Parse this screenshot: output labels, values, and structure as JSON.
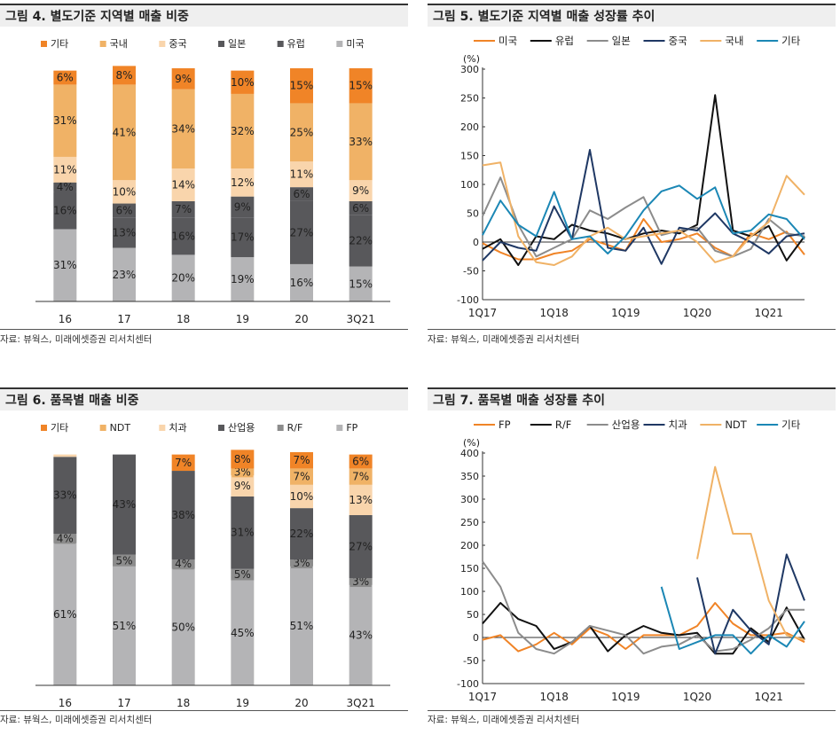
{
  "panels": [
    {
      "id": "fig4",
      "title": "그림 4. 별도기준 지역별 매출 비중",
      "source": "자료: 뷰웍스, 미래에셋증권 리서치센터",
      "chart_data": {
        "type": "bar",
        "stacked": true,
        "categories": [
          "16",
          "17",
          "18",
          "19",
          "20",
          "3Q21"
        ],
        "legend_position": "top",
        "series": [
          {
            "name": "미국",
            "color": "#b4b4b6",
            "values": [
              31,
              23,
              20,
              19,
              16,
              15
            ],
            "labels": [
              "31%",
              "23%",
              "20%",
              "19%",
              "16%",
              "15%"
            ]
          },
          {
            "name": "유럽",
            "color": "#58585b",
            "values": [
              16,
              13,
              16,
              17,
              27,
              22
            ],
            "labels": [
              "16%",
              "13%",
              "16%",
              "17%",
              "27%",
              "22%"
            ]
          },
          {
            "name": "일본",
            "color": "#58585b",
            "values": [
              4,
              6,
              7,
              9,
              6,
              6
            ],
            "labels": [
              "4%",
              "6%",
              "7%",
              "9%",
              "6%",
              "6%"
            ]
          },
          {
            "name": "중국",
            "color": "#f9d5ac",
            "values": [
              11,
              10,
              14,
              12,
              11,
              9
            ],
            "labels": [
              "11%",
              "10%",
              "14%",
              "12%",
              "11%",
              "9%"
            ]
          },
          {
            "name": "국내",
            "color": "#f0b266",
            "values": [
              31,
              41,
              34,
              32,
              25,
              33
            ],
            "labels": [
              "31%",
              "41%",
              "34%",
              "32%",
              "25%",
              "33%"
            ]
          },
          {
            "name": "기타",
            "color": "#f08427",
            "values": [
              6,
              8,
              9,
              10,
              15,
              15
            ],
            "labels": [
              "6%",
              "8%",
              "9%",
              "10%",
              "15%",
              "15%"
            ]
          }
        ]
      }
    },
    {
      "id": "fig5",
      "title": "그림 5. 별도기준 지역별 매출 성장률 추이",
      "source": "자료: 뷰웍스, 미래에셋증권 리서치센터",
      "chart_data": {
        "type": "line",
        "unit": "(%)",
        "ylim": [
          -100,
          300
        ],
        "yticks": [
          -100,
          -50,
          0,
          50,
          100,
          150,
          200,
          250,
          300
        ],
        "x": [
          "1Q17",
          "2Q17",
          "3Q17",
          "4Q17",
          "1Q18",
          "2Q18",
          "3Q18",
          "4Q18",
          "1Q19",
          "2Q19",
          "3Q19",
          "4Q19",
          "1Q20",
          "2Q20",
          "3Q20",
          "4Q20",
          "1Q21",
          "2Q21",
          "3Q21"
        ],
        "xticklabels": [
          "1Q17",
          "1Q18",
          "1Q19",
          "1Q20",
          "1Q21"
        ],
        "legend_position": "top",
        "series": [
          {
            "name": "미국",
            "color": "#f08427",
            "values": [
              -2,
              -18,
              -30,
              -30,
              -20,
              -15,
              5,
              -5,
              -15,
              40,
              0,
              5,
              15,
              -10,
              -25,
              15,
              5,
              18,
              -22
            ]
          },
          {
            "name": "유럽",
            "color": "#111111",
            "values": [
              -12,
              5,
              -40,
              10,
              5,
              30,
              20,
              15,
              5,
              15,
              20,
              15,
              30,
              255,
              20,
              10,
              28,
              -32,
              10
            ]
          },
          {
            "name": "일본",
            "color": "#8c8c8c",
            "values": [
              45,
              112,
              30,
              -25,
              -10,
              5,
              55,
              40,
              60,
              78,
              12,
              20,
              25,
              -15,
              -25,
              -12,
              40,
              15,
              10
            ]
          },
          {
            "name": "중국",
            "color": "#1f3864",
            "values": [
              -32,
              0,
              -10,
              -15,
              62,
              5,
              160,
              -10,
              -15,
              25,
              -38,
              25,
              20,
              50,
              15,
              0,
              -20,
              10,
              15
            ]
          },
          {
            "name": "국내",
            "color": "#f0b266",
            "values": [
              133,
              138,
              10,
              -35,
              -40,
              -25,
              10,
              25,
              5,
              10,
              15,
              20,
              0,
              -35,
              -25,
              10,
              35,
              115,
              82
            ]
          },
          {
            "name": "기타",
            "color": "#1b87b5",
            "values": [
              12,
              72,
              30,
              10,
              87,
              5,
              10,
              -20,
              10,
              55,
              88,
              98,
              75,
              95,
              15,
              20,
              48,
              40,
              5
            ]
          }
        ]
      }
    },
    {
      "id": "fig6",
      "title": "그림 6. 품목별 매출 비중",
      "source": "자료: 뷰웍스, 미래에셋증권 리서치센터",
      "chart_data": {
        "type": "bar",
        "stacked": true,
        "categories": [
          "16",
          "17",
          "18",
          "19",
          "20",
          "3Q21"
        ],
        "legend_position": "top",
        "series": [
          {
            "name": "FP",
            "color": "#b4b4b6",
            "values": [
              61,
              51,
              50,
              45,
              51,
              43
            ],
            "labels": [
              "61%",
              "51%",
              "50%",
              "45%",
              "51%",
              "43%"
            ]
          },
          {
            "name": "R/F",
            "color": "#8c8c8c",
            "values": [
              4,
              5,
              4,
              5,
              3,
              3
            ],
            "labels": [
              "4%",
              "5%",
              "4%",
              "5%",
              "3%",
              "3%"
            ]
          },
          {
            "name": "산업용",
            "color": "#58585b",
            "values": [
              33,
              43,
              38,
              31,
              22,
              27
            ],
            "labels": [
              "33%",
              "43%",
              "38%",
              "31%",
              "22%",
              "27%"
            ]
          },
          {
            "name": "치과",
            "color": "#f9d5ac",
            "values": [
              1,
              0,
              0,
              9,
              10,
              13
            ],
            "labels": [
              "",
              "",
              "",
              "9%",
              "10%",
              "13%"
            ]
          },
          {
            "name": "NDT",
            "color": "#f0b266",
            "values": [
              0,
              0,
              0,
              3,
              7,
              7
            ],
            "labels": [
              "",
              "",
              "",
              "3%",
              "7%",
              "7%"
            ]
          },
          {
            "name": "기타",
            "color": "#f08427",
            "values": [
              0,
              0,
              7,
              8,
              7,
              6
            ],
            "labels": [
              "",
              "",
              "7%",
              "8%",
              "7%",
              "6%"
            ]
          }
        ]
      }
    },
    {
      "id": "fig7",
      "title": "그림 7. 품목별 매출 성장률 추이",
      "source": "자료: 뷰웍스, 미래에셋증권 리서치센터",
      "chart_data": {
        "type": "line",
        "unit": "(%)",
        "ylim": [
          -100,
          400
        ],
        "yticks": [
          -100,
          -50,
          0,
          50,
          100,
          150,
          200,
          250,
          300,
          350,
          400
        ],
        "x": [
          "1Q17",
          "2Q17",
          "3Q17",
          "4Q17",
          "1Q18",
          "2Q18",
          "3Q18",
          "4Q18",
          "1Q19",
          "2Q19",
          "3Q19",
          "4Q19",
          "1Q20",
          "2Q20",
          "3Q20",
          "4Q20",
          "1Q21",
          "2Q21",
          "3Q21"
        ],
        "xticklabels": [
          "1Q17",
          "1Q18",
          "1Q19",
          "1Q20",
          "1Q21"
        ],
        "legend_position": "top",
        "series": [
          {
            "name": "FP",
            "color": "#f08427",
            "values": [
              -5,
              5,
              -30,
              -15,
              10,
              -15,
              20,
              5,
              -25,
              5,
              5,
              5,
              25,
              75,
              30,
              5,
              5,
              10,
              -10
            ]
          },
          {
            "name": "R/F",
            "color": "#111111",
            "values": [
              30,
              75,
              40,
              25,
              -25,
              -10,
              25,
              -30,
              5,
              25,
              10,
              5,
              10,
              -35,
              -35,
              20,
              -10,
              65,
              -5
            ]
          },
          {
            "name": "산업용",
            "color": "#8c8c8c",
            "values": [
              165,
              110,
              10,
              -25,
              -35,
              -10,
              25,
              15,
              5,
              -35,
              -20,
              -15,
              5,
              -30,
              -25,
              -5,
              20,
              60,
              60
            ]
          },
          {
            "name": "치과",
            "color": "#1f3864",
            "values": [
              null,
              null,
              null,
              null,
              null,
              null,
              null,
              null,
              null,
              null,
              null,
              null,
              130,
              -35,
              60,
              15,
              -15,
              180,
              80
            ]
          },
          {
            "name": "NDT",
            "color": "#f0b266",
            "values": [
              null,
              null,
              null,
              null,
              null,
              null,
              null,
              null,
              null,
              null,
              null,
              null,
              170,
              370,
              225,
              225,
              80,
              5,
              -5
            ]
          },
          {
            "name": "기타",
            "color": "#1b87b5",
            "values": [
              null,
              null,
              null,
              null,
              null,
              null,
              null,
              null,
              null,
              null,
              110,
              -25,
              -10,
              5,
              5,
              -35,
              5,
              -20,
              35
            ]
          }
        ]
      }
    }
  ]
}
